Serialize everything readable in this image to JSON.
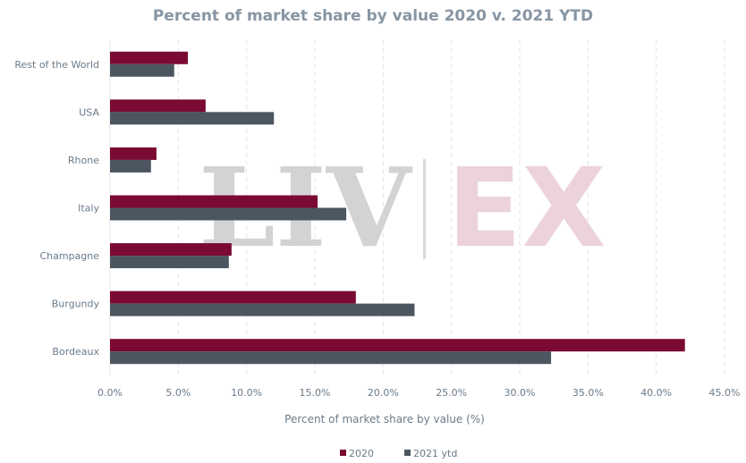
{
  "chart_data": {
    "type": "bar",
    "orientation": "horizontal",
    "title": "Percent of market share by value 2020 v. 2021 YTD",
    "xlabel": "Percent of market share by value (%)",
    "ylabel": "",
    "categories": [
      "Rest of the World",
      "USA",
      "Rhone",
      "Italy",
      "Champagne",
      "Burgundy",
      "Bordeaux"
    ],
    "series": [
      {
        "name": "2020",
        "color": "#7a0a33",
        "values": [
          5.7,
          7.0,
          3.4,
          15.2,
          8.9,
          18.0,
          42.1
        ]
      },
      {
        "name": "2021 ytd",
        "color": "#4b5660",
        "values": [
          4.7,
          12.0,
          3.0,
          17.3,
          8.7,
          22.3,
          32.3
        ]
      }
    ],
    "xlim": [
      0,
      45
    ],
    "xticks": [
      "0.0%",
      "5.0%",
      "10.0%",
      "15.0%",
      "20.0%",
      "25.0%",
      "30.0%",
      "35.0%",
      "40.0%",
      "45.0%"
    ],
    "grid": "vertical dashed",
    "legend_position": "bottom"
  },
  "watermark": {
    "left": "LIV",
    "right": "EX"
  }
}
